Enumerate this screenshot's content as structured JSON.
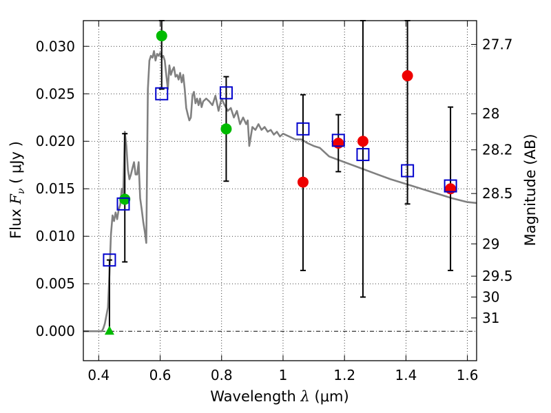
{
  "chart_data": {
    "type": "scatter",
    "xlabel_text": "Wavelength  ",
    "xlabel_symbol": "λ",
    "xlabel_unit": " (μm)",
    "ylabel_text": "Flux  ",
    "ylabel_symbol": "F",
    "ylabel_sub": "ν",
    "ylabel_unit": "  ( μJy )",
    "y2label": "Magnitude (AB)",
    "xlim": [
      0.35,
      1.63
    ],
    "ylim": [
      -0.0031,
      0.0327
    ],
    "x_ticks": [
      0.4,
      0.6,
      0.8,
      1.0,
      1.2,
      1.4,
      1.6
    ],
    "x_tick_labels": [
      "0.4",
      "0.6",
      "0.8",
      "1",
      "1.2",
      "1.4",
      "1.6"
    ],
    "y_ticks": [
      0.0,
      0.005,
      0.01,
      0.015,
      0.02,
      0.025,
      0.03
    ],
    "y_tick_labels": [
      "0.000",
      "0.005",
      "0.010",
      "0.015",
      "0.020",
      "0.025",
      "0.030"
    ],
    "mag_ticks": [
      {
        "label": "27.7",
        "flux": 0.0302
      },
      {
        "label": "28",
        "flux": 0.0229
      },
      {
        "label": "28.2",
        "flux": 0.0191
      },
      {
        "label": "28.5",
        "flux": 0.0145
      },
      {
        "label": "29",
        "flux": 0.0092
      },
      {
        "label": "29.5",
        "flux": 0.0058
      },
      {
        "label": "30",
        "flux": 0.0036
      },
      {
        "label": "31",
        "flux": 0.0014
      }
    ],
    "grid": true,
    "colors": {
      "model": "#808080",
      "green": "#00bb00",
      "red": "#ee0000",
      "square": "#0000cc",
      "errorbar": "#000000"
    },
    "series": [
      {
        "name": "model spectrum",
        "kind": "line",
        "x": [
          0.35,
          0.41,
          0.415,
          0.42,
          0.43,
          0.435,
          0.44,
          0.445,
          0.45,
          0.455,
          0.46,
          0.465,
          0.47,
          0.475,
          0.48,
          0.485,
          0.49,
          0.495,
          0.5,
          0.505,
          0.51,
          0.515,
          0.52,
          0.525,
          0.53,
          0.535,
          0.54,
          0.545,
          0.55,
          0.555,
          0.56,
          0.565,
          0.57,
          0.575,
          0.58,
          0.585,
          0.59,
          0.595,
          0.6,
          0.605,
          0.61,
          0.615,
          0.62,
          0.625,
          0.63,
          0.635,
          0.64,
          0.645,
          0.65,
          0.655,
          0.66,
          0.665,
          0.67,
          0.675,
          0.68,
          0.685,
          0.69,
          0.695,
          0.7,
          0.705,
          0.71,
          0.715,
          0.72,
          0.725,
          0.73,
          0.735,
          0.74,
          0.75,
          0.76,
          0.77,
          0.78,
          0.79,
          0.8,
          0.81,
          0.82,
          0.83,
          0.84,
          0.85,
          0.86,
          0.87,
          0.88,
          0.885,
          0.89,
          0.9,
          0.91,
          0.92,
          0.93,
          0.94,
          0.95,
          0.96,
          0.97,
          0.98,
          0.99,
          1.0,
          1.02,
          1.04,
          1.06,
          1.08,
          1.1,
          1.12,
          1.15,
          1.2,
          1.25,
          1.3,
          1.35,
          1.4,
          1.45,
          1.5,
          1.55,
          1.6,
          1.63
        ],
        "y": [
          0.0,
          0.0,
          0.0003,
          0.0008,
          0.0025,
          0.006,
          0.0102,
          0.0122,
          0.0116,
          0.0125,
          0.0118,
          0.0128,
          0.0133,
          0.015,
          0.0145,
          0.021,
          0.0195,
          0.017,
          0.016,
          0.0165,
          0.0172,
          0.0178,
          0.0165,
          0.0165,
          0.0178,
          0.014,
          0.0128,
          0.0115,
          0.0105,
          0.0093,
          0.0255,
          0.0285,
          0.029,
          0.0288,
          0.0295,
          0.0285,
          0.0292,
          0.029,
          0.0293,
          0.0288,
          0.029,
          0.0285,
          0.027,
          0.0255,
          0.028,
          0.027,
          0.0275,
          0.0278,
          0.0268,
          0.027,
          0.0265,
          0.0272,
          0.0262,
          0.027,
          0.0255,
          0.0235,
          0.0228,
          0.0222,
          0.0225,
          0.0248,
          0.0252,
          0.024,
          0.0245,
          0.0238,
          0.0245,
          0.0236,
          0.0242,
          0.0245,
          0.0242,
          0.0238,
          0.0248,
          0.0232,
          0.0245,
          0.0238,
          0.0232,
          0.0235,
          0.0225,
          0.0232,
          0.0218,
          0.0225,
          0.0218,
          0.0222,
          0.0195,
          0.0215,
          0.0212,
          0.0218,
          0.0212,
          0.0215,
          0.021,
          0.0212,
          0.0207,
          0.021,
          0.0205,
          0.0208,
          0.0205,
          0.0202,
          0.0202,
          0.0198,
          0.0195,
          0.0193,
          0.0184,
          0.0178,
          0.0172,
          0.0166,
          0.016,
          0.0155,
          0.015,
          0.0145,
          0.014,
          0.0136,
          0.0135
        ]
      },
      {
        "name": "green photometry",
        "kind": "circle",
        "x": [
          0.485,
          0.605,
          0.815
        ],
        "y": [
          0.0139,
          0.0311,
          0.0213
        ]
      },
      {
        "name": "green upper limit",
        "kind": "triangle",
        "x": [
          0.435
        ],
        "y": [
          0.0
        ]
      },
      {
        "name": "red photometry",
        "kind": "circle",
        "x": [
          1.065,
          1.18,
          1.26,
          1.405,
          1.545
        ],
        "y": [
          0.0157,
          0.0198,
          0.02,
          0.0269,
          0.015
        ]
      },
      {
        "name": "model synthetic photometry",
        "kind": "square",
        "x": [
          0.435,
          0.48,
          0.605,
          0.815,
          1.065,
          1.18,
          1.26,
          1.405,
          1.545
        ],
        "y": [
          0.0075,
          0.0134,
          0.025,
          0.0251,
          0.0213,
          0.0201,
          0.0186,
          0.0169,
          0.0153
        ]
      }
    ],
    "errorbars": [
      {
        "x": 0.435,
        "low": 0.0,
        "high": 0.0075
      },
      {
        "x": 0.485,
        "low": 0.0073,
        "high": 0.0208
      },
      {
        "x": 0.605,
        "low": 0.0255,
        "high": 0.0327
      },
      {
        "x": 0.815,
        "low": 0.0158,
        "high": 0.0268
      },
      {
        "x": 1.065,
        "low": 0.0064,
        "high": 0.0249
      },
      {
        "x": 1.18,
        "low": 0.0168,
        "high": 0.0228
      },
      {
        "x": 1.26,
        "low": 0.0036,
        "high": 0.0327
      },
      {
        "x": 1.405,
        "low": 0.0134,
        "high": 0.0327
      },
      {
        "x": 1.545,
        "low": 0.0064,
        "high": 0.0236
      }
    ]
  }
}
